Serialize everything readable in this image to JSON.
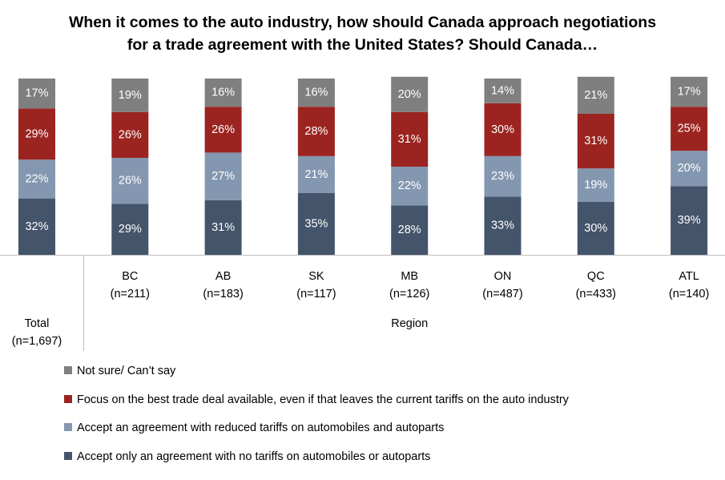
{
  "title_lines": [
    "When it comes to the auto industry, how should Canada approach negotiations",
    "for a trade agreement with the United States? Should Canada…"
  ],
  "chart_data": {
    "type": "bar",
    "stacked": true,
    "percent": true,
    "categories": [
      {
        "label": "Total",
        "n": "(n=1,697)"
      },
      {
        "label": "BC",
        "n": "(n=211)"
      },
      {
        "label": "AB",
        "n": "(n=183)"
      },
      {
        "label": "SK",
        "n": "(n=117)"
      },
      {
        "label": "MB",
        "n": "(n=126)"
      },
      {
        "label": "ON",
        "n": "(n=487)"
      },
      {
        "label": "QC",
        "n": "(n=433)"
      },
      {
        "label": "ATL",
        "n": "(n=140)"
      }
    ],
    "group_label": "Region",
    "series": [
      {
        "name": "Accept only an agreement with no tariffs on automobiles or autoparts",
        "color": "#44546a",
        "values": [
          32,
          29,
          31,
          35,
          28,
          33,
          30,
          39
        ]
      },
      {
        "name": "Accept an agreement with reduced tariffs on automobiles and autoparts",
        "color": "#8497b0",
        "values": [
          22,
          26,
          27,
          21,
          22,
          23,
          19,
          20
        ]
      },
      {
        "name": "Focus on the best trade deal available, even if that leaves the current tariffs on the auto industry",
        "color": "#9b2421",
        "values": [
          29,
          26,
          26,
          28,
          31,
          30,
          31,
          25
        ]
      },
      {
        "name": "Not sure/ Can’t say",
        "color": "#7f7f7f",
        "values": [
          17,
          19,
          16,
          16,
          20,
          14,
          21,
          17
        ]
      }
    ],
    "legend_position": "bottom",
    "grid": false
  }
}
